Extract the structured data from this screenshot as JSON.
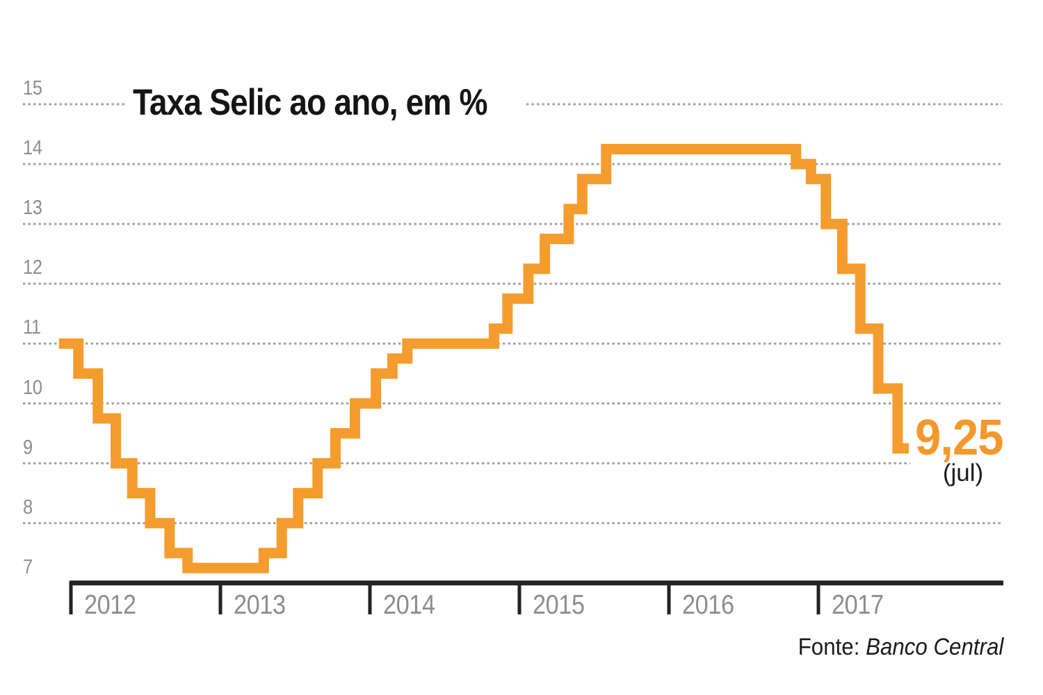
{
  "chart": {
    "title": "Taxa Selic ao ano, em %",
    "latest": {
      "value": "9,25",
      "month": "(jul)"
    }
  },
  "source": {
    "prefix": "Fonte:",
    "name": "Banco Central"
  },
  "y_axis": {
    "ticks": [
      15,
      14,
      13,
      12,
      11,
      10,
      9,
      8,
      7
    ]
  },
  "x_axis": {
    "years": [
      "2012",
      "2013",
      "2014",
      "2015",
      "2016",
      "2017"
    ]
  },
  "chart_data": {
    "type": "step-line",
    "title": "Taxa Selic ao ano, em %",
    "ylabel": "",
    "xlabel": "",
    "ylim": [
      7,
      15
    ],
    "xlim_years": [
      2011.92,
      2017.99
    ],
    "grid": "dotted-horizontal",
    "series_name": "Taxa Selic (% ao ano)",
    "points": [
      {
        "x": 2011.92,
        "y": 11.0
      },
      {
        "x": 2012.05,
        "y": 10.5
      },
      {
        "x": 2012.18,
        "y": 9.75
      },
      {
        "x": 2012.3,
        "y": 9.0
      },
      {
        "x": 2012.41,
        "y": 8.5
      },
      {
        "x": 2012.53,
        "y": 8.0
      },
      {
        "x": 2012.66,
        "y": 7.5
      },
      {
        "x": 2012.78,
        "y": 7.25
      },
      {
        "x": 2013.29,
        "y": 7.5
      },
      {
        "x": 2013.41,
        "y": 8.0
      },
      {
        "x": 2013.52,
        "y": 8.5
      },
      {
        "x": 2013.65,
        "y": 9.0
      },
      {
        "x": 2013.77,
        "y": 9.5
      },
      {
        "x": 2013.9,
        "y": 10.0
      },
      {
        "x": 2014.04,
        "y": 10.5
      },
      {
        "x": 2014.15,
        "y": 10.75
      },
      {
        "x": 2014.25,
        "y": 11.0
      },
      {
        "x": 2014.83,
        "y": 11.25
      },
      {
        "x": 2014.92,
        "y": 11.75
      },
      {
        "x": 2015.06,
        "y": 12.25
      },
      {
        "x": 2015.17,
        "y": 12.75
      },
      {
        "x": 2015.33,
        "y": 13.25
      },
      {
        "x": 2015.42,
        "y": 13.75
      },
      {
        "x": 2015.58,
        "y": 14.25
      },
      {
        "x": 2016.85,
        "y": 14.0
      },
      {
        "x": 2016.95,
        "y": 13.75
      },
      {
        "x": 2017.05,
        "y": 13.0
      },
      {
        "x": 2017.16,
        "y": 12.25
      },
      {
        "x": 2017.28,
        "y": 11.25
      },
      {
        "x": 2017.4,
        "y": 10.25
      },
      {
        "x": 2017.53,
        "y": 9.25
      }
    ],
    "end_x": 2017.605,
    "annotation": {
      "value": "9,25",
      "month": "(jul)"
    }
  },
  "colors": {
    "line": "#f59c2e",
    "grid": "#a2a2a2",
    "axis": "#222222",
    "gray_label": "#8d8d8d",
    "value_label": "#f5982c"
  }
}
